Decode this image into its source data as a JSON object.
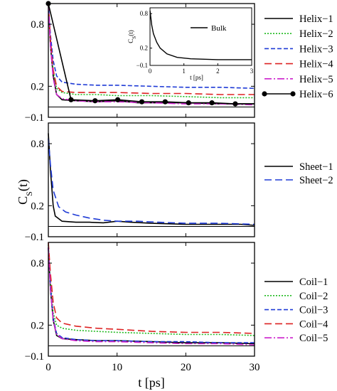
{
  "figure": {
    "ylabel": "C_S(t)",
    "xlabel": "t [ps]"
  },
  "chart_data": [
    {
      "type": "line",
      "panel": "top",
      "xlim": [
        0,
        30
      ],
      "ylim": [
        -0.1,
        1.0
      ],
      "xticks": [
        0,
        10,
        20,
        30
      ],
      "yticks": [
        -0.1,
        0.2,
        0.8
      ],
      "ytick_labels": [
        "−0.1",
        "0.2",
        "0.8"
      ],
      "grid": false,
      "legend_position": "outside-right",
      "series": [
        {
          "name": "Helix−1",
          "color": "#000000",
          "dash": "",
          "marker": false,
          "points": [
            [
              0,
              1.0
            ],
            [
              0.3,
              0.6
            ],
            [
              0.7,
              0.3
            ],
            [
              1.2,
              0.12
            ],
            [
              2,
              0.07
            ],
            [
              4,
              0.06
            ],
            [
              7,
              0.05
            ],
            [
              10,
              0.06
            ],
            [
              13,
              0.04
            ],
            [
              16,
              0.04
            ],
            [
              20,
              0.04
            ],
            [
              25,
              0.03
            ],
            [
              30,
              0.03
            ]
          ]
        },
        {
          "name": "Helix−2",
          "color": "#22bb22",
          "dash": "2,2",
          "marker": false,
          "points": [
            [
              0,
              1.0
            ],
            [
              0.3,
              0.65
            ],
            [
              0.7,
              0.35
            ],
            [
              1.2,
              0.18
            ],
            [
              2,
              0.14
            ],
            [
              4,
              0.12
            ],
            [
              7,
              0.12
            ],
            [
              10,
              0.11
            ],
            [
              15,
              0.11
            ],
            [
              20,
              0.1
            ],
            [
              25,
              0.09
            ],
            [
              30,
              0.09
            ]
          ]
        },
        {
          "name": "Helix−3",
          "color": "#1f3bd6",
          "dash": "6,3",
          "marker": false,
          "points": [
            [
              0,
              1.0
            ],
            [
              0.3,
              0.7
            ],
            [
              0.7,
              0.45
            ],
            [
              1.2,
              0.3
            ],
            [
              2,
              0.24
            ],
            [
              4,
              0.22
            ],
            [
              7,
              0.21
            ],
            [
              10,
              0.21
            ],
            [
              15,
              0.2
            ],
            [
              20,
              0.19
            ],
            [
              25,
              0.19
            ],
            [
              30,
              0.18
            ]
          ]
        },
        {
          "name": "Helix−4",
          "color": "#dd2222",
          "dash": "10,5",
          "marker": false,
          "points": [
            [
              0,
              1.0
            ],
            [
              0.3,
              0.66
            ],
            [
              0.7,
              0.36
            ],
            [
              1.2,
              0.2
            ],
            [
              2,
              0.15
            ],
            [
              4,
              0.14
            ],
            [
              7,
              0.14
            ],
            [
              10,
              0.14
            ],
            [
              15,
              0.13
            ],
            [
              20,
              0.13
            ],
            [
              25,
              0.12
            ],
            [
              30,
              0.12
            ]
          ]
        },
        {
          "name": "Helix−5",
          "color": "#cc22cc",
          "dash": "10,3,2,3",
          "marker": false,
          "points": [
            [
              0,
              1.0
            ],
            [
              0.3,
              0.6
            ],
            [
              0.7,
              0.28
            ],
            [
              1.2,
              0.12
            ],
            [
              2,
              0.08
            ],
            [
              4,
              0.06
            ],
            [
              7,
              0.05
            ],
            [
              10,
              0.05
            ],
            [
              15,
              0.04
            ],
            [
              20,
              0.03
            ],
            [
              25,
              0.03
            ],
            [
              30,
              0.02
            ]
          ]
        },
        {
          "name": "Helix−6",
          "color": "#000000",
          "dash": "",
          "marker": true,
          "points": [
            [
              0,
              1.0
            ],
            [
              3.3,
              0.07
            ],
            [
              6.8,
              0.06
            ],
            [
              10.1,
              0.07
            ],
            [
              13.6,
              0.05
            ],
            [
              17,
              0.05
            ],
            [
              20.4,
              0.04
            ],
            [
              23.8,
              0.04
            ],
            [
              27.2,
              0.03
            ],
            [
              30,
              0.03
            ]
          ]
        }
      ],
      "inset": {
        "xlabel": "t [ps]",
        "ylabel": "C_S(t)",
        "xlim": [
          0,
          3
        ],
        "ylim": [
          -0.1,
          0.9
        ],
        "xticks": [
          0,
          1,
          2,
          3
        ],
        "yticks": [
          -0.1,
          0.2,
          0.8
        ],
        "ytick_labels": [
          "−0.1",
          "0.2",
          "0.8"
        ],
        "series": [
          {
            "name": "Bulk",
            "color": "#000000",
            "points": [
              [
                0,
                0.85
              ],
              [
                0.05,
                0.6
              ],
              [
                0.1,
                0.45
              ],
              [
                0.2,
                0.3
              ],
              [
                0.3,
                0.2
              ],
              [
                0.5,
                0.1
              ],
              [
                0.8,
                0.04
              ],
              [
                1.2,
                0.015
              ],
              [
                2,
                0.0
              ],
              [
                3,
                0.0
              ]
            ]
          }
        ]
      }
    },
    {
      "type": "line",
      "panel": "middle",
      "xlim": [
        0,
        30
      ],
      "ylim": [
        -0.1,
        1.0
      ],
      "xticks": [
        0,
        10,
        20,
        30
      ],
      "yticks": [
        -0.1,
        0.2,
        0.8
      ],
      "ytick_labels": [
        "−0.1",
        "0.2",
        "0.8"
      ],
      "grid": false,
      "legend_position": "outside-right",
      "series": [
        {
          "name": "Sheet−1",
          "color": "#000000",
          "dash": "",
          "marker": false,
          "points": [
            [
              0,
              0.9
            ],
            [
              0.3,
              0.55
            ],
            [
              0.7,
              0.2
            ],
            [
              1,
              0.1
            ],
            [
              2,
              0.05
            ],
            [
              4,
              0.04
            ],
            [
              6,
              0.04
            ],
            [
              8,
              0.035
            ],
            [
              10,
              0.05
            ],
            [
              12,
              0.04
            ],
            [
              15,
              0.03
            ],
            [
              20,
              0.02
            ],
            [
              25,
              0.02
            ],
            [
              28,
              0.02
            ],
            [
              30,
              0.01
            ]
          ]
        },
        {
          "name": "Sheet−2",
          "color": "#1f3bd6",
          "dash": "10,5",
          "marker": false,
          "points": [
            [
              0,
              0.85
            ],
            [
              0.3,
              0.6
            ],
            [
              0.7,
              0.35
            ],
            [
              1.5,
              0.19
            ],
            [
              2.5,
              0.14
            ],
            [
              4,
              0.11
            ],
            [
              6,
              0.08
            ],
            [
              8,
              0.06
            ],
            [
              10,
              0.05
            ],
            [
              13,
              0.05
            ],
            [
              16,
              0.04
            ],
            [
              20,
              0.03
            ],
            [
              25,
              0.03
            ],
            [
              30,
              0.02
            ]
          ]
        }
      ]
    },
    {
      "type": "line",
      "panel": "bottom",
      "xlim": [
        0,
        30
      ],
      "ylim": [
        -0.1,
        1.0
      ],
      "xticks": [
        0,
        10,
        20,
        30
      ],
      "yticks": [
        -0.1,
        0.2,
        0.8
      ],
      "ytick_labels": [
        "−0.1",
        "0.2",
        "0.8"
      ],
      "xlabel": "t [ps]",
      "grid": false,
      "legend_position": "outside-right",
      "series": [
        {
          "name": "Coil−1",
          "color": "#000000",
          "dash": "",
          "marker": false,
          "points": [
            [
              0,
              0.95
            ],
            [
              0.3,
              0.55
            ],
            [
              0.7,
              0.25
            ],
            [
              1.2,
              0.1
            ],
            [
              2,
              0.07
            ],
            [
              4,
              0.06
            ],
            [
              7,
              0.05
            ],
            [
              10,
              0.05
            ],
            [
              15,
              0.04
            ],
            [
              20,
              0.03
            ],
            [
              25,
              0.03
            ],
            [
              30,
              0.02
            ]
          ]
        },
        {
          "name": "Coil−2",
          "color": "#22bb22",
          "dash": "2,2",
          "marker": false,
          "points": [
            [
              0,
              0.98
            ],
            [
              0.3,
              0.62
            ],
            [
              0.7,
              0.32
            ],
            [
              1.2,
              0.2
            ],
            [
              2,
              0.17
            ],
            [
              4,
              0.15
            ],
            [
              7,
              0.14
            ],
            [
              10,
              0.13
            ],
            [
              15,
              0.12
            ],
            [
              20,
              0.11
            ],
            [
              25,
              0.11
            ],
            [
              30,
              0.1
            ]
          ]
        },
        {
          "name": "Coil−3",
          "color": "#1f3bd6",
          "dash": "6,3",
          "marker": false,
          "points": [
            [
              0,
              0.95
            ],
            [
              0.3,
              0.58
            ],
            [
              0.7,
              0.27
            ],
            [
              1.2,
              0.12
            ],
            [
              2,
              0.08
            ],
            [
              4,
              0.06
            ],
            [
              7,
              0.05
            ],
            [
              10,
              0.05
            ],
            [
              15,
              0.04
            ],
            [
              20,
              0.04
            ],
            [
              25,
              0.03
            ],
            [
              30,
              0.03
            ]
          ]
        },
        {
          "name": "Coil−4",
          "color": "#dd2222",
          "dash": "10,5",
          "marker": false,
          "points": [
            [
              0,
              1.0
            ],
            [
              0.3,
              0.7
            ],
            [
              0.7,
              0.42
            ],
            [
              1.2,
              0.27
            ],
            [
              2,
              0.22
            ],
            [
              4,
              0.19
            ],
            [
              7,
              0.17
            ],
            [
              10,
              0.16
            ],
            [
              15,
              0.14
            ],
            [
              20,
              0.13
            ],
            [
              25,
              0.13
            ],
            [
              30,
              0.12
            ]
          ]
        },
        {
          "name": "Coil−5",
          "color": "#cc22cc",
          "dash": "10,3,2,3",
          "marker": false,
          "points": [
            [
              0,
              0.95
            ],
            [
              0.3,
              0.56
            ],
            [
              0.7,
              0.25
            ],
            [
              1.2,
              0.11
            ],
            [
              2,
              0.07
            ],
            [
              4,
              0.05
            ],
            [
              7,
              0.04
            ],
            [
              10,
              0.04
            ],
            [
              15,
              0.03
            ],
            [
              20,
              0.02
            ],
            [
              25,
              0.02
            ],
            [
              30,
              0.01
            ]
          ]
        }
      ]
    }
  ]
}
